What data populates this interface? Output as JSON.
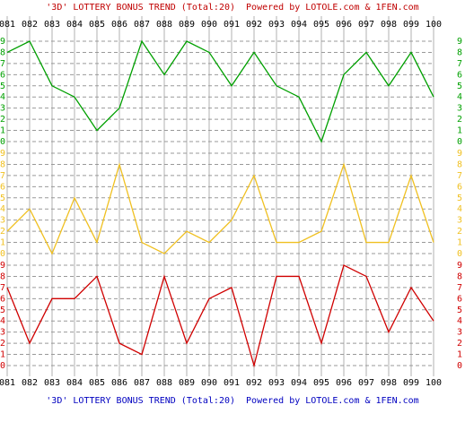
{
  "chart_data": {
    "type": "line",
    "title": "'3D' LOTTERY BONUS TREND (Total:20)  Powered by LOTOLE.com & 1FEN.com",
    "categories": [
      "081",
      "082",
      "083",
      "084",
      "085",
      "086",
      "087",
      "088",
      "089",
      "090",
      "091",
      "092",
      "093",
      "094",
      "095",
      "096",
      "097",
      "098",
      "099",
      "100"
    ],
    "ylim": [
      0,
      9
    ],
    "yticks": [
      0,
      1,
      2,
      3,
      4,
      5,
      6,
      7,
      8,
      9
    ],
    "grid": true,
    "series": [
      {
        "color": "#00a000",
        "values": [
          8,
          9,
          5,
          4,
          1,
          3,
          9,
          6,
          9,
          8,
          5,
          8,
          5,
          4,
          0,
          6,
          8,
          5,
          8,
          4
        ]
      },
      {
        "color": "#f0c020",
        "values": [
          2,
          4,
          0,
          5,
          1,
          8,
          1,
          0,
          2,
          1,
          3,
          7,
          1,
          1,
          2,
          8,
          1,
          1,
          7,
          1
        ]
      },
      {
        "color": "#d00000",
        "values": [
          7,
          2,
          6,
          6,
          8,
          2,
          1,
          8,
          2,
          6,
          7,
          0,
          8,
          8,
          2,
          9,
          8,
          3,
          7,
          4
        ]
      }
    ]
  }
}
